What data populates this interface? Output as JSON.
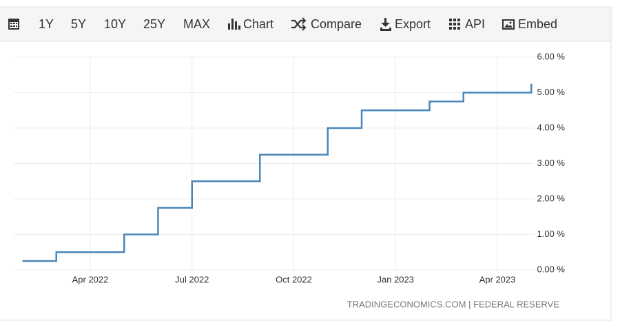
{
  "toolbar": {
    "items": [
      "1Y",
      "5Y",
      "10Y",
      "25Y",
      "MAX",
      "Chart",
      "Compare",
      "Export",
      "API",
      "Embed"
    ]
  },
  "chart_data": {
    "type": "step",
    "x": [
      "2022-02",
      "2022-03",
      "2022-05",
      "2022-06",
      "2022-07",
      "2022-09",
      "2022-11",
      "2022-12",
      "2023-02",
      "2023-03",
      "2023-05"
    ],
    "values": [
      0.25,
      0.5,
      1,
      1.75,
      2.5,
      3.25,
      4,
      4.5,
      4.75,
      5,
      5.25
    ],
    "color": "#4a86b8",
    "ylim": [
      0,
      6
    ],
    "yticks": [
      {
        "value": 0,
        "label": "0.00 %"
      },
      {
        "value": 1,
        "label": "1.00 %"
      },
      {
        "value": 2,
        "label": "2.00 %"
      },
      {
        "value": 3,
        "label": "3.00 %"
      },
      {
        "value": 4,
        "label": "4.00 %"
      },
      {
        "value": 5,
        "label": "5.00 %"
      },
      {
        "value": 6,
        "label": "6.00 %"
      }
    ],
    "xticks": [
      {
        "value": "2022-04",
        "label": "Apr 2022"
      },
      {
        "value": "2022-07",
        "label": "Jul 2022"
      },
      {
        "value": "2022-10",
        "label": "Oct 2022"
      },
      {
        "value": "2023-01",
        "label": "Jan 2023"
      },
      {
        "value": "2023-04",
        "label": "Apr 2023"
      }
    ],
    "grid": true,
    "source": "TRADINGECONOMICS.COM | FEDERAL RESERVE"
  }
}
